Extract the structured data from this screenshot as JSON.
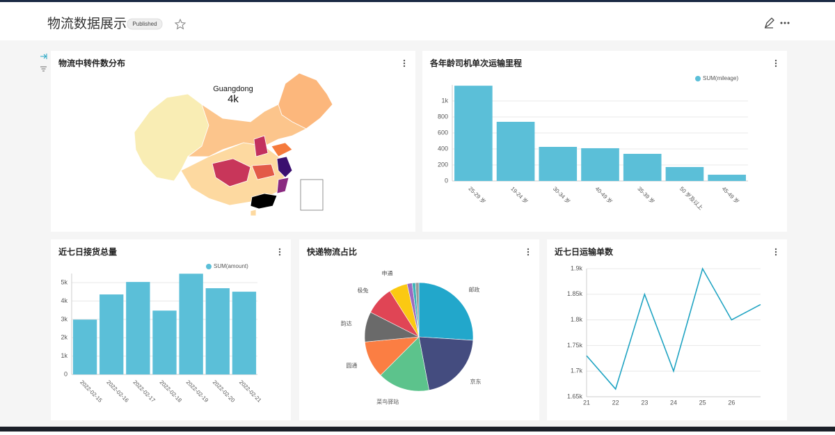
{
  "header": {
    "title": "物流数据展示",
    "badge": "Published"
  },
  "chart_data": [
    {
      "type": "map",
      "title": "物流中转件数分布",
      "tooltip": {
        "region": "Guangdong",
        "value": 4000,
        "value_label": "4k"
      }
    },
    {
      "type": "bar",
      "title": "各年龄司机单次运输里程",
      "categories": [
        "25-29 岁",
        "19-24 岁",
        "30-34 岁",
        "40-49 岁",
        "35-39 岁",
        "50 岁及以上",
        "45-49 岁"
      ],
      "series": [
        {
          "name": "SUM(mileage)",
          "color": "#5bbfd8",
          "values": [
            1190,
            739,
            426,
            409,
            339,
            174,
            78
          ]
        }
      ],
      "ylim": [
        0,
        1200
      ],
      "yticks": [
        0,
        200,
        400,
        600,
        800,
        {
          "value": 1000,
          "label": "1k"
        }
      ],
      "grid": true
    },
    {
      "type": "bar",
      "title": "近七日接货总量",
      "categories": [
        "2022-02-15",
        "2022-02-16",
        "2022-02-17",
        "2022-02-18",
        "2022-02-19",
        "2022-02-20",
        "2022-02-21"
      ],
      "series": [
        {
          "name": "SUM(amount)",
          "color": "#5bbfd8",
          "values": [
            2990,
            4360,
            5040,
            3480,
            5490,
            4700,
            4510
          ]
        }
      ],
      "ylim": [
        0,
        5500
      ],
      "yticks": [
        0,
        {
          "value": 1000,
          "label": "1k"
        },
        {
          "value": 2000,
          "label": "2k"
        },
        {
          "value": 3000,
          "label": "3k"
        },
        {
          "value": 4000,
          "label": "4k"
        },
        {
          "value": 5000,
          "label": "5k"
        }
      ],
      "grid": true
    },
    {
      "type": "pie",
      "title": "快递物流占比",
      "categories": [
        "邮政",
        "京东",
        "菜鸟驿站",
        "圆通",
        "韵达",
        "极兔",
        "申通",
        null,
        null,
        null
      ],
      "values": [
        26,
        21,
        15.5,
        11,
        9,
        8.5,
        5.5,
        1.5,
        1,
        1
      ],
      "colors": [
        "#22a7cb",
        "#444c7f",
        "#5cc38c",
        "#fb7e43",
        "#6a6a6a",
        "#e04555",
        "#fbc912",
        "#9c6bc0",
        "#3fb5b8",
        "#9a9a9a"
      ]
    },
    {
      "type": "line",
      "title": "近七日运输单数",
      "x": [
        21,
        22,
        23,
        24,
        25,
        26,
        27
      ],
      "series": [
        {
          "name": null,
          "color": "#1ea3c2",
          "values": [
            1730,
            1665,
            1850,
            1700,
            1900,
            1800,
            1830
          ]
        }
      ],
      "xlim": [
        21,
        27
      ],
      "xticks": [
        21,
        22,
        23,
        24,
        25,
        26
      ],
      "ylim": [
        1650,
        1900
      ],
      "yticks": [
        {
          "value": 1650,
          "label": "1.65k"
        },
        {
          "value": 1700,
          "label": "1.7k"
        },
        {
          "value": 1750,
          "label": "1.75k"
        },
        {
          "value": 1800,
          "label": "1.8k"
        },
        {
          "value": 1850,
          "label": "1.85k"
        },
        {
          "value": 1900,
          "label": "1.9k"
        }
      ],
      "grid": true
    }
  ]
}
